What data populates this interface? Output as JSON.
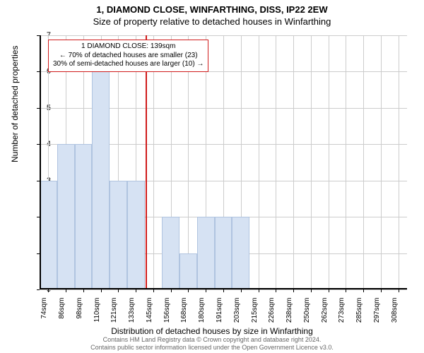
{
  "title": "1, DIAMOND CLOSE, WINFARTHING, DISS, IP22 2EW",
  "subtitle": "Size of property relative to detached houses in Winfarthing",
  "ylabel": "Number of detached properties",
  "xlabel": "Distribution of detached houses by size in Winfarthing",
  "chart": {
    "type": "bar",
    "ylim": [
      0,
      7
    ],
    "ytick_step": 1,
    "yticks": [
      0,
      1,
      2,
      3,
      4,
      5,
      6,
      7
    ],
    "xcategories": [
      "74sqm",
      "86sqm",
      "98sqm",
      "110sqm",
      "121sqm",
      "133sqm",
      "145sqm",
      "156sqm",
      "168sqm",
      "180sqm",
      "191sqm",
      "203sqm",
      "215sqm",
      "226sqm",
      "238sqm",
      "250sqm",
      "262sqm",
      "273sqm",
      "285sqm",
      "297sqm",
      "308sqm"
    ],
    "values": [
      3,
      4,
      4,
      6,
      3,
      3,
      0,
      2,
      1,
      2,
      2,
      2,
      0,
      0,
      0,
      0,
      0,
      0,
      0,
      0,
      0
    ],
    "bar_color": "#d6e2f3",
    "bar_border_color": "#b0c4e0",
    "grid_color": "#cccccc",
    "background_color": "#ffffff",
    "marker": {
      "value_sqm": 139,
      "color": "#d01c1c"
    }
  },
  "annotation": {
    "line1": "1 DIAMOND CLOSE: 139sqm",
    "line2": "← 70% of detached houses are smaller (23)",
    "line3": "30% of semi-detached houses are larger (10) →",
    "border_color": "#d01c1c",
    "font_size": 10
  },
  "attribution": {
    "line1": "Contains HM Land Registry data © Crown copyright and database right 2024.",
    "line2": "Contains public sector information licensed under the Open Government Licence v3.0."
  }
}
